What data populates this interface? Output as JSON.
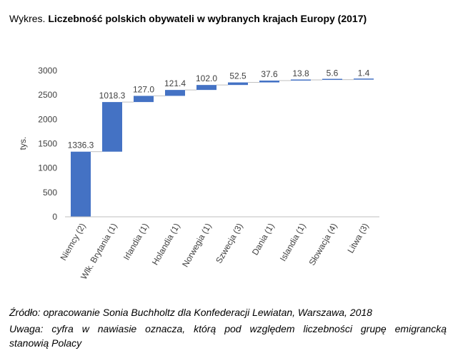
{
  "title": {
    "prefix": "Wykres.",
    "main": "Liczebność polskich obywateli w wybranych krajach Europy (2017)"
  },
  "chart_data": {
    "type": "bar",
    "subtype": "waterfall",
    "ylabel": "tys.",
    "xlabel": "",
    "ylim": [
      0,
      3000
    ],
    "yticks": [
      0,
      500,
      1000,
      1500,
      2000,
      2500,
      3000
    ],
    "categories": [
      "Niemcy (2)",
      "Wlk. Brytania (1)",
      "Irlandia (1)",
      "Holandia (1)",
      "Norwegia (1)",
      "Szwecja (3)",
      "Dania (1)",
      "Islandia (1)",
      "Słowacja (4)",
      "Litwa (3)"
    ],
    "values": [
      1336.3,
      1018.3,
      127.0,
      121.4,
      102.0,
      52.5,
      37.6,
      13.8,
      5.6,
      1.4
    ],
    "data_labels": [
      "1336.3",
      "1018.3",
      "127.0",
      "121.4",
      "102.0",
      "52.5",
      "37.6",
      "13.8",
      "5.6",
      "1.4"
    ],
    "grid": false,
    "legend": "none",
    "bar_color": "#4472c4",
    "connector_color": "#bfbfbf"
  },
  "footer": {
    "source": "Źródło: opracowanie Sonia Buchholtz dla Konfederacji Lewiatan,  Warszawa, 2018",
    "note_line1": "Uwaga: cyfra w nawiasie oznacza, którą pod względem liczebności grupę emigrancką",
    "note_line2": "stanowią Polacy"
  }
}
